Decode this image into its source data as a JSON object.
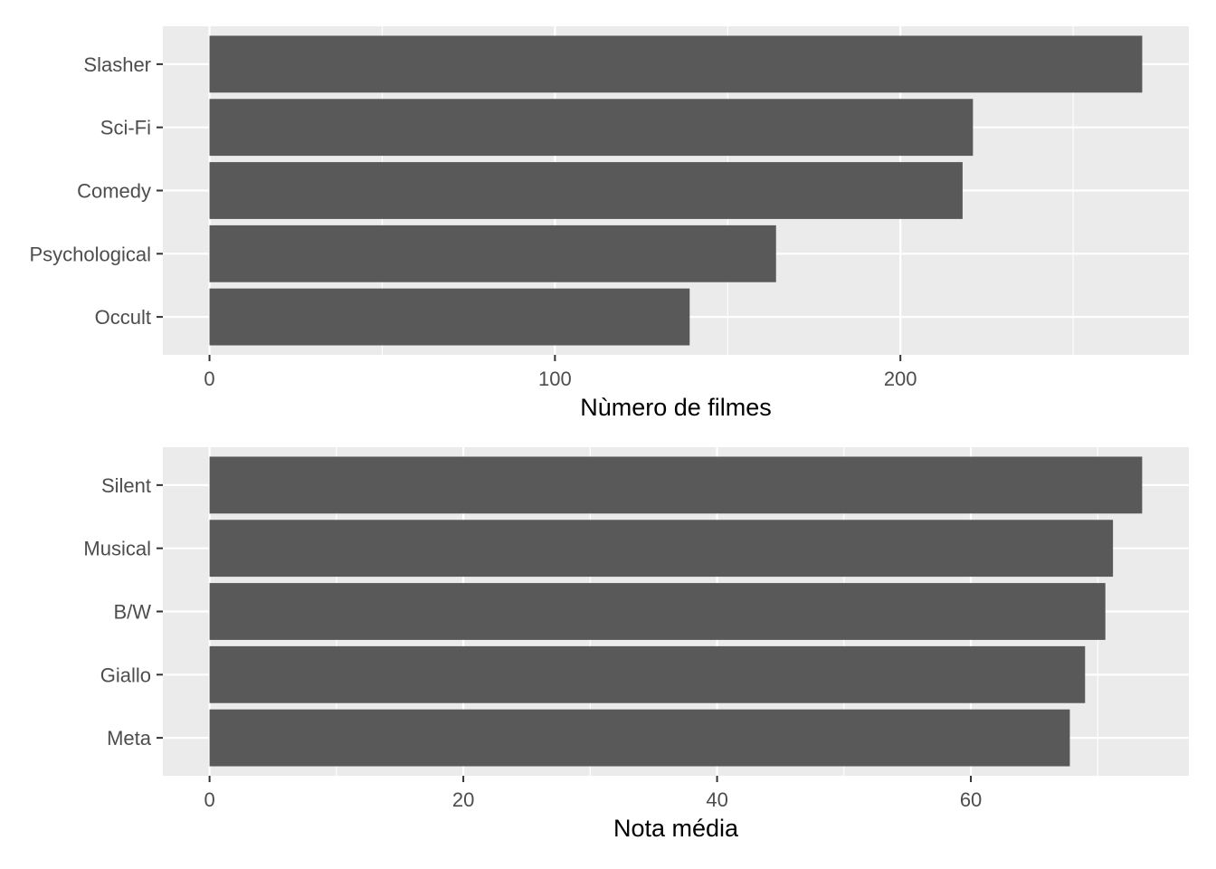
{
  "chart_data": [
    {
      "type": "bar",
      "orientation": "horizontal",
      "categories": [
        "Slasher",
        "Sci-Fi",
        "Comedy",
        "Psychological",
        "Occult"
      ],
      "values": [
        270,
        221,
        218,
        164,
        139
      ],
      "xlabel": "Nùmero de filmes",
      "ylabel": "",
      "xlim": [
        -13.5,
        283.5
      ],
      "xticks": [
        0,
        100,
        200
      ],
      "xtick_labels": [
        "0",
        "100",
        "200"
      ],
      "grid": true,
      "colors": {
        "bar": "#595959",
        "panel": "#EBEBEB",
        "grid": "#FFFFFF"
      }
    },
    {
      "type": "bar",
      "orientation": "horizontal",
      "categories": [
        "Silent",
        "Musical",
        "B/W",
        "Giallo",
        "Meta"
      ],
      "values": [
        73.5,
        71.2,
        70.6,
        69.0,
        67.8
      ],
      "xlabel": "Nota média",
      "ylabel": "",
      "xlim": [
        -3.68,
        77.18
      ],
      "xticks": [
        0,
        20,
        40,
        60
      ],
      "xtick_labels": [
        "0",
        "20",
        "40",
        "60"
      ],
      "grid": true,
      "colors": {
        "bar": "#595959",
        "panel": "#EBEBEB",
        "grid": "#FFFFFF"
      }
    }
  ]
}
